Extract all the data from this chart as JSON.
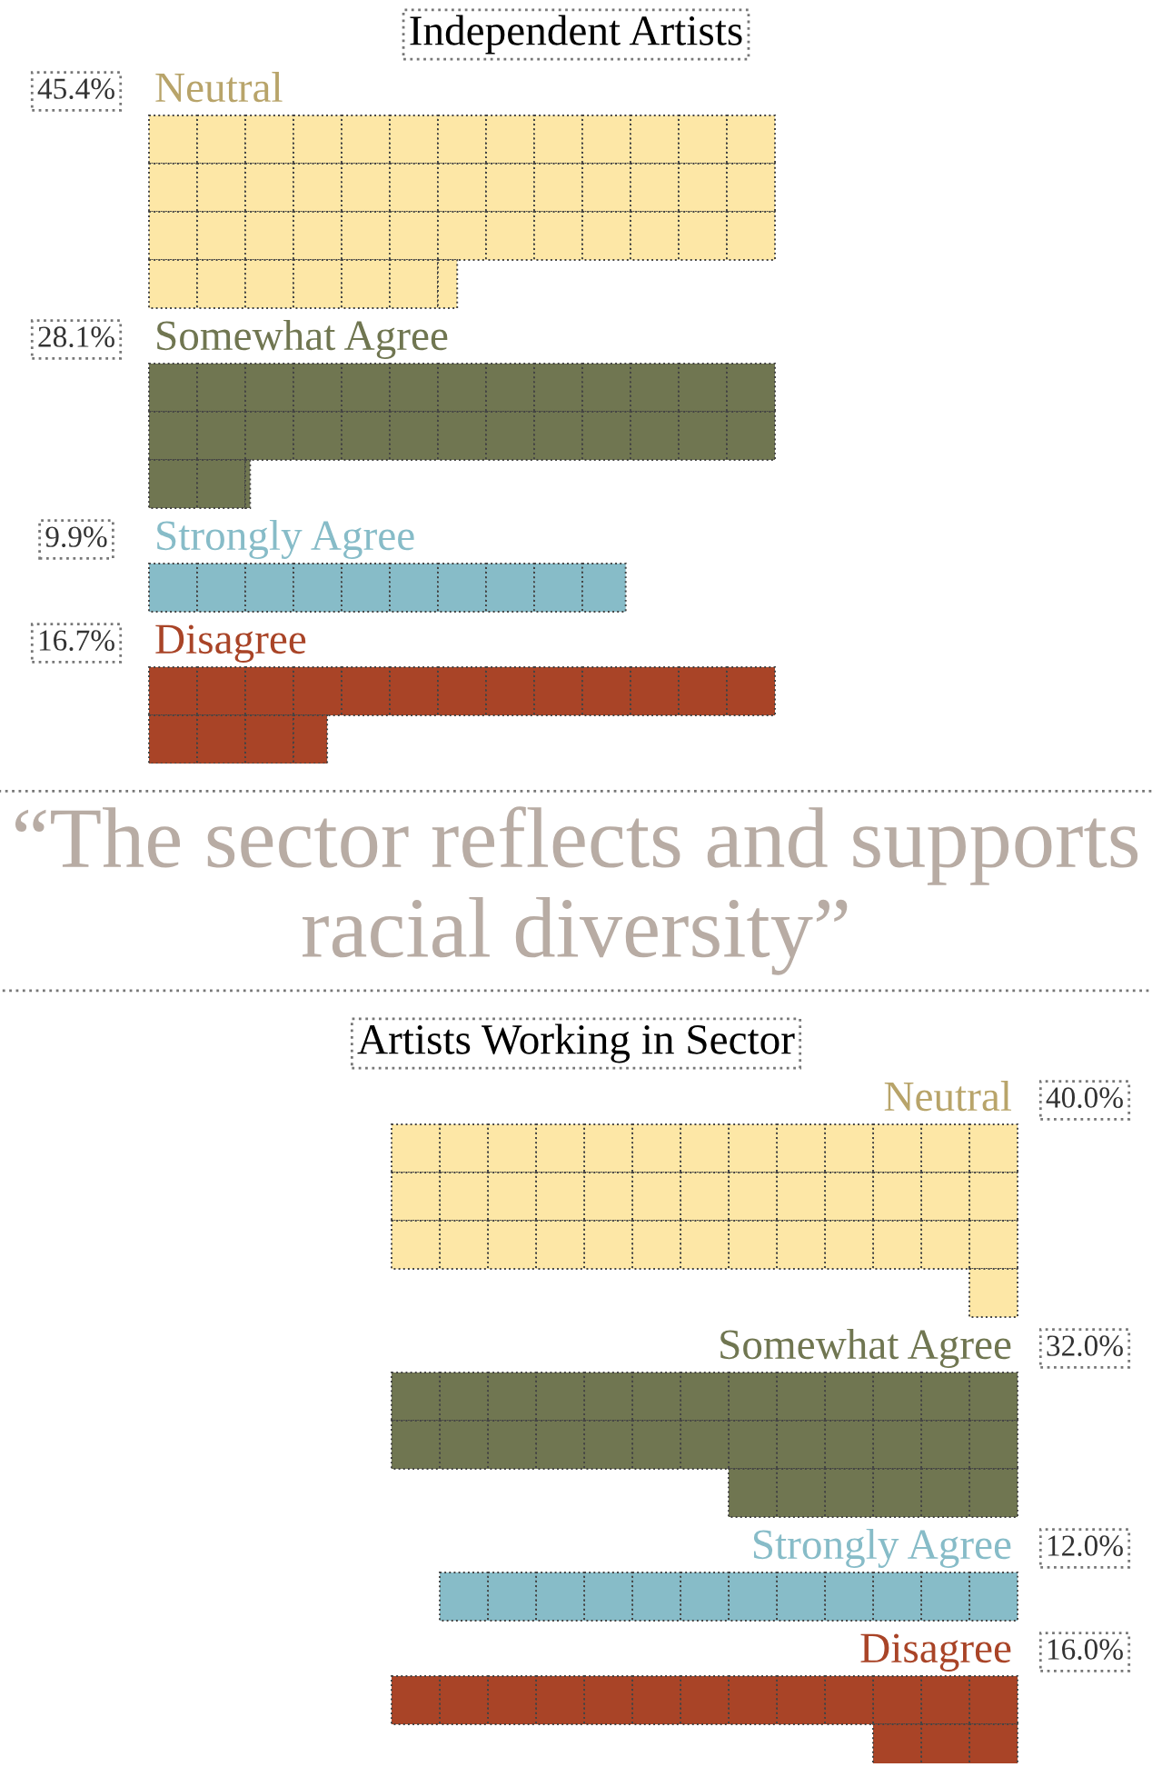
{
  "chart_data": [
    {
      "type": "other",
      "title": "Independent Artists",
      "categories": [
        "Neutral",
        "Somewhat Agree",
        "Strongly Agree",
        "Disagree"
      ],
      "values": [
        45.4,
        28.1,
        9.9,
        16.7
      ],
      "value_labels": [
        "45.4%",
        "28.1%",
        "9.9%",
        "16.7%"
      ],
      "colors": [
        "#fde7a6",
        "#707651",
        "#87bcc8",
        "#a94427"
      ],
      "annotations": [
        "“The sector reflects and supports racial diversity”"
      ]
    },
    {
      "type": "other",
      "title": "Artists Working in Sector",
      "categories": [
        "Neutral",
        "Somewhat Agree",
        "Strongly Agree",
        "Disagree"
      ],
      "values": [
        40.0,
        32.0,
        12.0,
        16.0
      ],
      "value_labels": [
        "40.0%",
        "32.0%",
        "12.0%",
        "16.0%"
      ],
      "colors": [
        "#fde7a6",
        "#707651",
        "#87bcc8",
        "#a94427"
      ]
    }
  ]
}
